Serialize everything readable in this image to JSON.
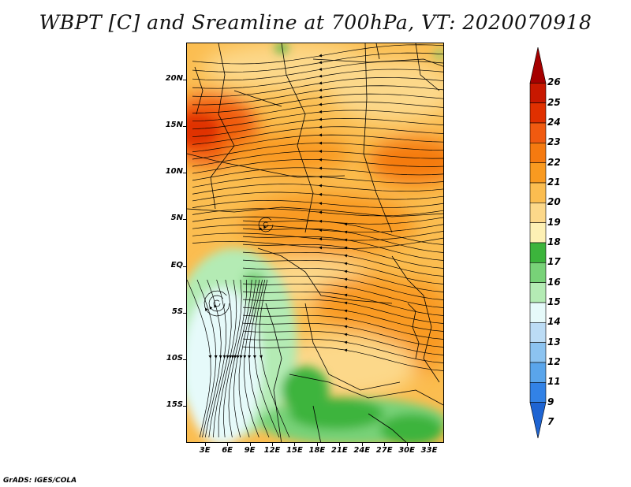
{
  "title": "WBPT [C] and Sreamline at 700hPa, VT: 2020070918",
  "lat_axis": {
    "labels": [
      "20N",
      "15N",
      "10N",
      "5N",
      "EQ",
      "5S",
      "10S",
      "15S"
    ],
    "values": [
      20,
      15,
      10,
      5,
      0,
      -5,
      -10,
      -15
    ],
    "range": [
      -19,
      24
    ]
  },
  "lon_axis": {
    "labels": [
      "3E",
      "6E",
      "9E",
      "12E",
      "15E",
      "18E",
      "21E",
      "24E",
      "27E",
      "30E",
      "33E"
    ],
    "values": [
      3,
      6,
      9,
      12,
      15,
      18,
      21,
      24,
      27,
      30,
      33
    ],
    "range": [
      0.5,
      35
    ]
  },
  "colorbar": {
    "labels": [
      "26",
      "25",
      "24",
      "23",
      "22",
      "21",
      "20",
      "19",
      "18",
      "17",
      "16",
      "15",
      "14",
      "13",
      "12",
      "11",
      "9",
      "7"
    ],
    "colors": [
      "#a50000",
      "#c81800",
      "#e03000",
      "#f05a10",
      "#f57a10",
      "#f99a20",
      "#fbbd50",
      "#fcd88a",
      "#fdf0b4",
      "#3cb43c",
      "#78d278",
      "#b4ebb4",
      "#e6fafa",
      "#bcdcf5",
      "#8cc3f0",
      "#5aa5eb",
      "#3282e6",
      "#1e64d2"
    ]
  },
  "credit": "GrADS: IGES/COLA"
}
